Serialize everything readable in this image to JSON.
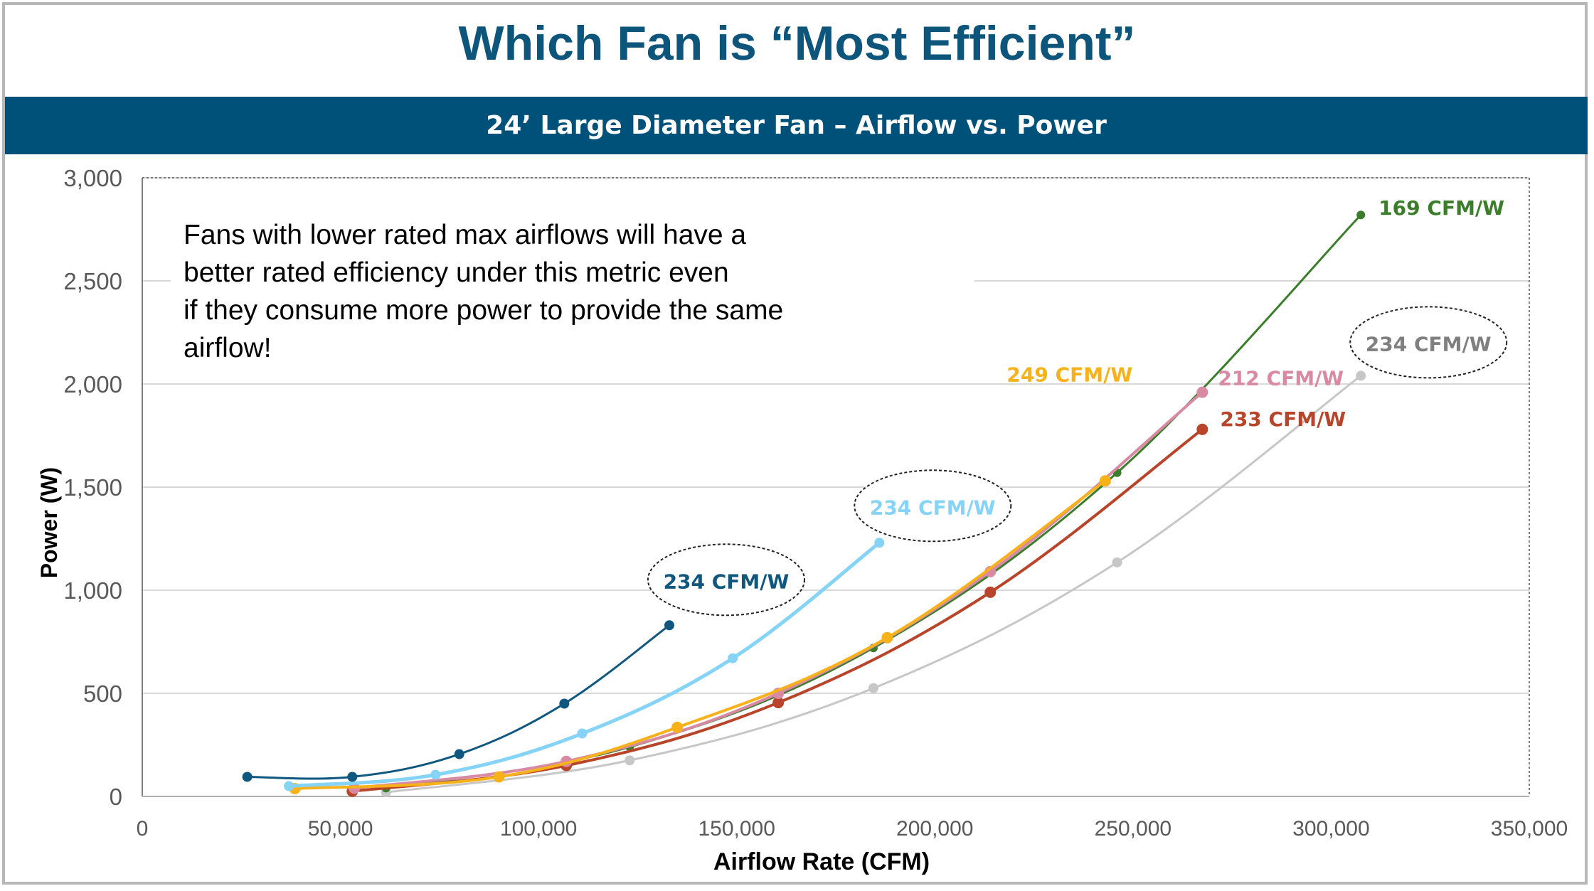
{
  "slide_title": "Which Fan is “Most Efficient”",
  "banner_title": "24’ Large Diameter Fan – Airflow vs. Power",
  "chart_data": {
    "type": "line",
    "xlabel": "Airflow Rate (CFM)",
    "ylabel": "Power (W)",
    "xlim": [
      0,
      350000
    ],
    "ylim": [
      0,
      3000
    ],
    "x_ticks": [
      0,
      50000,
      100000,
      150000,
      200000,
      250000,
      300000,
      350000
    ],
    "y_ticks": [
      0,
      500,
      1000,
      1500,
      2000,
      2500,
      3000
    ],
    "x_tick_labels": [
      "0",
      "50,000",
      "100,000",
      "150,000",
      "200,000",
      "250,000",
      "300,000",
      "350,000"
    ],
    "y_tick_labels": [
      "0",
      "500",
      "1,000",
      "1,500",
      "2,000",
      "2,500",
      "3,000"
    ],
    "grid": "horizontal",
    "annotation": "Fans with lower rated max airflows will have a better rated efficiency under this metric even if they consume more power to provide the same airflow!",
    "series": [
      {
        "label": "234 CFM/W",
        "color": "#0f577e",
        "circled": true,
        "x": [
          26500,
          53000,
          80000,
          106500,
          133000
        ],
        "y": [
          95,
          95,
          205,
          450,
          830
        ]
      },
      {
        "label": "234 CFM/W",
        "color": "#85d3f7",
        "circled": true,
        "x": [
          37000,
          74000,
          111000,
          149000,
          186000
        ],
        "y": [
          50,
          105,
          305,
          670,
          1230
        ]
      },
      {
        "label": "169 CFM/W",
        "color": "#3b7d2b",
        "circled": false,
        "x": [
          61500,
          123000,
          184500,
          246000,
          307500
        ],
        "y": [
          40,
          240,
          720,
          1570,
          2820
        ]
      },
      {
        "label": "212 CFM/W",
        "color": "#d98aa3",
        "circled": false,
        "x": [
          53500,
          107000,
          160500,
          214000,
          267500
        ],
        "y": [
          40,
          170,
          500,
          1090,
          1960
        ]
      },
      {
        "label": "249 CFM/W",
        "color": "#f7b21b",
        "circled": false,
        "x": [
          38500,
          90000,
          135000,
          188000,
          243000
        ],
        "y": [
          38,
          95,
          335,
          770,
          1530
        ]
      },
      {
        "label": "233 CFM/W",
        "color": "#b8442a",
        "circled": false,
        "x": [
          53000,
          107000,
          160500,
          214000,
          267500
        ],
        "y": [
          25,
          150,
          455,
          990,
          1780
        ]
      },
      {
        "label": "234 CFM/W",
        "color": "#c7c7c7",
        "circled": true,
        "x": [
          61500,
          123000,
          184500,
          246000,
          307500
        ],
        "y": [
          20,
          175,
          525,
          1135,
          2040
        ]
      }
    ]
  },
  "colors": {
    "title": "#0e557c",
    "banner": "#005179",
    "gridline": "#d9d9d9",
    "axis_text": "#595959"
  }
}
